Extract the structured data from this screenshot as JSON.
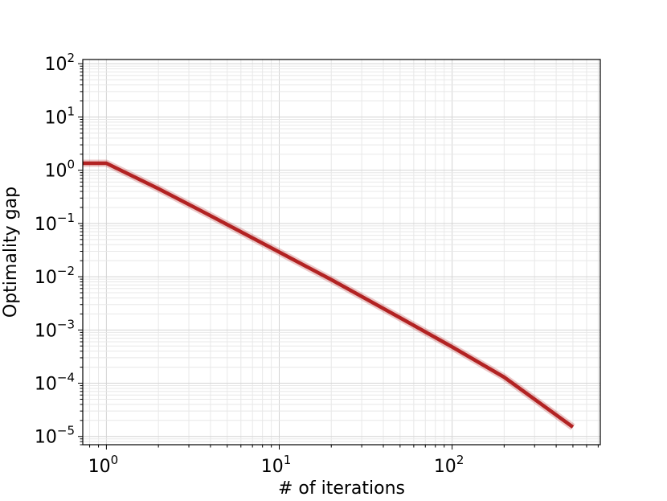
{
  "chart_data": {
    "type": "line",
    "title": "",
    "xlabel": "# of iterations",
    "ylabel": "Optimality gap",
    "x_scale": "log",
    "y_scale": "log",
    "xlim": [
      0.73,
      720
    ],
    "ylim": [
      7e-06,
      120
    ],
    "grid": true,
    "legend": "none",
    "x_ticks": [
      {
        "base": "10",
        "exp": "0",
        "value": 1
      },
      {
        "base": "10",
        "exp": "1",
        "value": 10
      },
      {
        "base": "10",
        "exp": "2",
        "value": 100
      }
    ],
    "y_ticks": [
      {
        "base": "10",
        "exp": "2",
        "value": 100
      },
      {
        "base": "10",
        "exp": "1",
        "value": 10
      },
      {
        "base": "10",
        "exp": "0",
        "value": 1
      },
      {
        "base": "10",
        "exp": "−1",
        "value": 0.1
      },
      {
        "base": "10",
        "exp": "−2",
        "value": 0.01
      },
      {
        "base": "10",
        "exp": "−3",
        "value": 0.001
      },
      {
        "base": "10",
        "exp": "−4",
        "value": 0.0001
      },
      {
        "base": "10",
        "exp": "−5",
        "value": 1e-05
      }
    ],
    "series": [
      {
        "color": "#b22222",
        "x": [
          0.73,
          1,
          2,
          4,
          10,
          20,
          50,
          100,
          200,
          500
        ],
        "y": [
          1.35,
          1.35,
          0.45,
          0.14,
          0.029,
          0.0088,
          0.0017,
          0.00048,
          0.00013,
          1.5e-05
        ]
      }
    ]
  }
}
